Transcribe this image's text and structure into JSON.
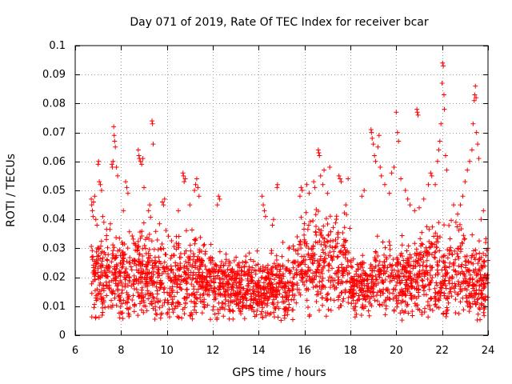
{
  "chart_data": {
    "type": "scatter",
    "title": "Day 071 of 2019, Rate Of TEC Index for receiver bcar",
    "xlabel": "GPS time / hours",
    "ylabel": "ROTI / TECUs",
    "xlim": [
      6,
      24
    ],
    "ylim": [
      0,
      0.1
    ],
    "xticks": [
      "6",
      "8",
      "10",
      "12",
      "14",
      "16",
      "18",
      "20",
      "22",
      "24"
    ],
    "yticks": [
      "0",
      "0.01",
      "0.02",
      "0.03",
      "0.04",
      "0.05",
      "0.06",
      "0.07",
      "0.08",
      "0.09",
      "0.1"
    ],
    "grid": true,
    "marker": "+",
    "color": "#ff0000",
    "series": [
      {
        "name": "ROTI",
        "points": [
          [
            6.7,
            0.047
          ],
          [
            6.72,
            0.045
          ],
          [
            6.75,
            0.043
          ],
          [
            6.78,
            0.041
          ],
          [
            6.8,
            0.046
          ],
          [
            6.85,
            0.048
          ],
          [
            6.9,
            0.04
          ],
          [
            6.95,
            0.038
          ],
          [
            7.0,
            0.059
          ],
          [
            7.02,
            0.06
          ],
          [
            7.05,
            0.053
          ],
          [
            7.1,
            0.052
          ],
          [
            7.15,
            0.05
          ],
          [
            7.2,
            0.041
          ],
          [
            7.25,
            0.039
          ],
          [
            7.6,
            0.059
          ],
          [
            7.62,
            0.058
          ],
          [
            7.65,
            0.06
          ],
          [
            7.68,
            0.072
          ],
          [
            7.7,
            0.069
          ],
          [
            7.72,
            0.067
          ],
          [
            7.75,
            0.065
          ],
          [
            7.8,
            0.058
          ],
          [
            7.85,
            0.055
          ],
          [
            8.1,
            0.043
          ],
          [
            8.2,
            0.053
          ],
          [
            8.25,
            0.051
          ],
          [
            8.3,
            0.049
          ],
          [
            8.75,
            0.064
          ],
          [
            8.78,
            0.062
          ],
          [
            8.8,
            0.061
          ],
          [
            8.85,
            0.06
          ],
          [
            8.9,
            0.059
          ],
          [
            8.95,
            0.061
          ],
          [
            9.0,
            0.051
          ],
          [
            9.2,
            0.043
          ],
          [
            9.25,
            0.045
          ],
          [
            9.35,
            0.074
          ],
          [
            9.37,
            0.073
          ],
          [
            9.4,
            0.066
          ],
          [
            9.8,
            0.046
          ],
          [
            9.85,
            0.045
          ],
          [
            9.9,
            0.047
          ],
          [
            10.5,
            0.043
          ],
          [
            10.7,
            0.056
          ],
          [
            10.72,
            0.055
          ],
          [
            10.75,
            0.053
          ],
          [
            10.8,
            0.054
          ],
          [
            11.0,
            0.045
          ],
          [
            11.2,
            0.05
          ],
          [
            11.25,
            0.052
          ],
          [
            11.3,
            0.054
          ],
          [
            11.35,
            0.051
          ],
          [
            11.4,
            0.048
          ],
          [
            12.2,
            0.045
          ],
          [
            12.25,
            0.048
          ],
          [
            12.3,
            0.047
          ],
          [
            14.15,
            0.048
          ],
          [
            14.2,
            0.045
          ],
          [
            14.25,
            0.043
          ],
          [
            14.3,
            0.041
          ],
          [
            14.6,
            0.038
          ],
          [
            14.65,
            0.04
          ],
          [
            14.8,
            0.051
          ],
          [
            14.82,
            0.052
          ],
          [
            15.8,
            0.048
          ],
          [
            15.85,
            0.051
          ],
          [
            15.9,
            0.05
          ],
          [
            16.1,
            0.052
          ],
          [
            16.2,
            0.049
          ],
          [
            16.4,
            0.053
          ],
          [
            16.45,
            0.051
          ],
          [
            16.6,
            0.064
          ],
          [
            16.62,
            0.063
          ],
          [
            16.65,
            0.062
          ],
          [
            16.7,
            0.055
          ],
          [
            16.8,
            0.052
          ],
          [
            16.85,
            0.057
          ],
          [
            17.0,
            0.049
          ],
          [
            17.1,
            0.058
          ],
          [
            17.5,
            0.055
          ],
          [
            17.55,
            0.054
          ],
          [
            17.6,
            0.053
          ],
          [
            17.8,
            0.045
          ],
          [
            17.9,
            0.054
          ],
          [
            18.5,
            0.048
          ],
          [
            18.6,
            0.05
          ],
          [
            18.9,
            0.071
          ],
          [
            18.92,
            0.07
          ],
          [
            18.95,
            0.068
          ],
          [
            19.0,
            0.066
          ],
          [
            19.05,
            0.062
          ],
          [
            19.1,
            0.06
          ],
          [
            19.2,
            0.065
          ],
          [
            19.25,
            0.069
          ],
          [
            19.3,
            0.058
          ],
          [
            19.35,
            0.055
          ],
          [
            19.5,
            0.052
          ],
          [
            19.7,
            0.049
          ],
          [
            19.8,
            0.056
          ],
          [
            19.9,
            0.058
          ],
          [
            20.0,
            0.077
          ],
          [
            20.05,
            0.07
          ],
          [
            20.1,
            0.067
          ],
          [
            20.2,
            0.054
          ],
          [
            20.4,
            0.05
          ],
          [
            20.5,
            0.047
          ],
          [
            20.6,
            0.045
          ],
          [
            20.8,
            0.043
          ],
          [
            20.9,
            0.078
          ],
          [
            20.92,
            0.077
          ],
          [
            20.95,
            0.076
          ],
          [
            21.0,
            0.044
          ],
          [
            21.2,
            0.047
          ],
          [
            21.4,
            0.052
          ],
          [
            21.5,
            0.056
          ],
          [
            21.55,
            0.055
          ],
          [
            21.7,
            0.052
          ],
          [
            21.8,
            0.06
          ],
          [
            21.85,
            0.064
          ],
          [
            21.9,
            0.067
          ],
          [
            21.95,
            0.073
          ],
          [
            22.0,
            0.087
          ],
          [
            22.02,
            0.094
          ],
          [
            22.05,
            0.093
          ],
          [
            22.08,
            0.083
          ],
          [
            22.1,
            0.078
          ],
          [
            22.15,
            0.062
          ],
          [
            22.2,
            0.057
          ],
          [
            22.5,
            0.045
          ],
          [
            22.6,
            0.039
          ],
          [
            22.8,
            0.045
          ],
          [
            22.9,
            0.048
          ],
          [
            23.0,
            0.053
          ],
          [
            23.1,
            0.057
          ],
          [
            23.2,
            0.06
          ],
          [
            23.3,
            0.064
          ],
          [
            23.35,
            0.073
          ],
          [
            23.4,
            0.081
          ],
          [
            23.42,
            0.083
          ],
          [
            23.45,
            0.086
          ],
          [
            23.48,
            0.082
          ],
          [
            23.5,
            0.07
          ],
          [
            23.55,
            0.066
          ],
          [
            23.6,
            0.061
          ],
          [
            23.7,
            0.04
          ],
          [
            23.8,
            0.043
          ],
          [
            23.9,
            0.032
          ],
          [
            24.0,
            0.03
          ]
        ]
      }
    ]
  }
}
